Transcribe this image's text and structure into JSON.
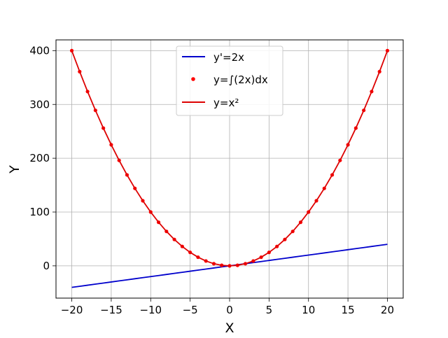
{
  "chart_data": {
    "type": "line",
    "xlabel": "X",
    "ylabel": "Y",
    "xlim": [
      -22,
      22
    ],
    "ylim": [
      -60,
      420
    ],
    "xticks": [
      -20,
      -15,
      -10,
      -5,
      0,
      5,
      10,
      15,
      20
    ],
    "yticks": [
      0,
      100,
      200,
      300,
      400
    ],
    "grid": true,
    "legend_position": "top-center",
    "x": [
      -20,
      -19,
      -18,
      -17,
      -16,
      -15,
      -14,
      -13,
      -12,
      -11,
      -10,
      -9,
      -8,
      -7,
      -6,
      -5,
      -4,
      -3,
      -2,
      -1,
      0,
      1,
      2,
      3,
      4,
      5,
      6,
      7,
      8,
      9,
      10,
      11,
      12,
      13,
      14,
      15,
      16,
      17,
      18,
      19,
      20
    ],
    "series": [
      {
        "name": "y'=2x",
        "style": "line",
        "color": "#0000cc",
        "values": [
          -40,
          -38,
          -36,
          -34,
          -32,
          -30,
          -28,
          -26,
          -24,
          -22,
          -20,
          -18,
          -16,
          -14,
          -12,
          -10,
          -8,
          -6,
          -4,
          -2,
          0,
          2,
          4,
          6,
          8,
          10,
          12,
          14,
          16,
          18,
          20,
          22,
          24,
          26,
          28,
          30,
          32,
          34,
          36,
          38,
          40
        ]
      },
      {
        "name": "y=∫(2x)dx",
        "style": "markers",
        "color": "#ff0000",
        "values": [
          400,
          361,
          324,
          289,
          256,
          225,
          196,
          169,
          144,
          121,
          100,
          81,
          64,
          49,
          36,
          25,
          16,
          9,
          4,
          1,
          0,
          1,
          4,
          9,
          16,
          25,
          36,
          49,
          64,
          81,
          100,
          121,
          144,
          169,
          196,
          225,
          256,
          289,
          324,
          361,
          400
        ]
      },
      {
        "name": "y=x²",
        "style": "line",
        "color": "#dd0000",
        "values": [
          400,
          361,
          324,
          289,
          256,
          225,
          196,
          169,
          144,
          121,
          100,
          81,
          64,
          49,
          36,
          25,
          16,
          9,
          4,
          1,
          0,
          1,
          4,
          9,
          16,
          25,
          36,
          49,
          64,
          81,
          100,
          121,
          144,
          169,
          196,
          225,
          256,
          289,
          324,
          361,
          400
        ]
      }
    ]
  }
}
